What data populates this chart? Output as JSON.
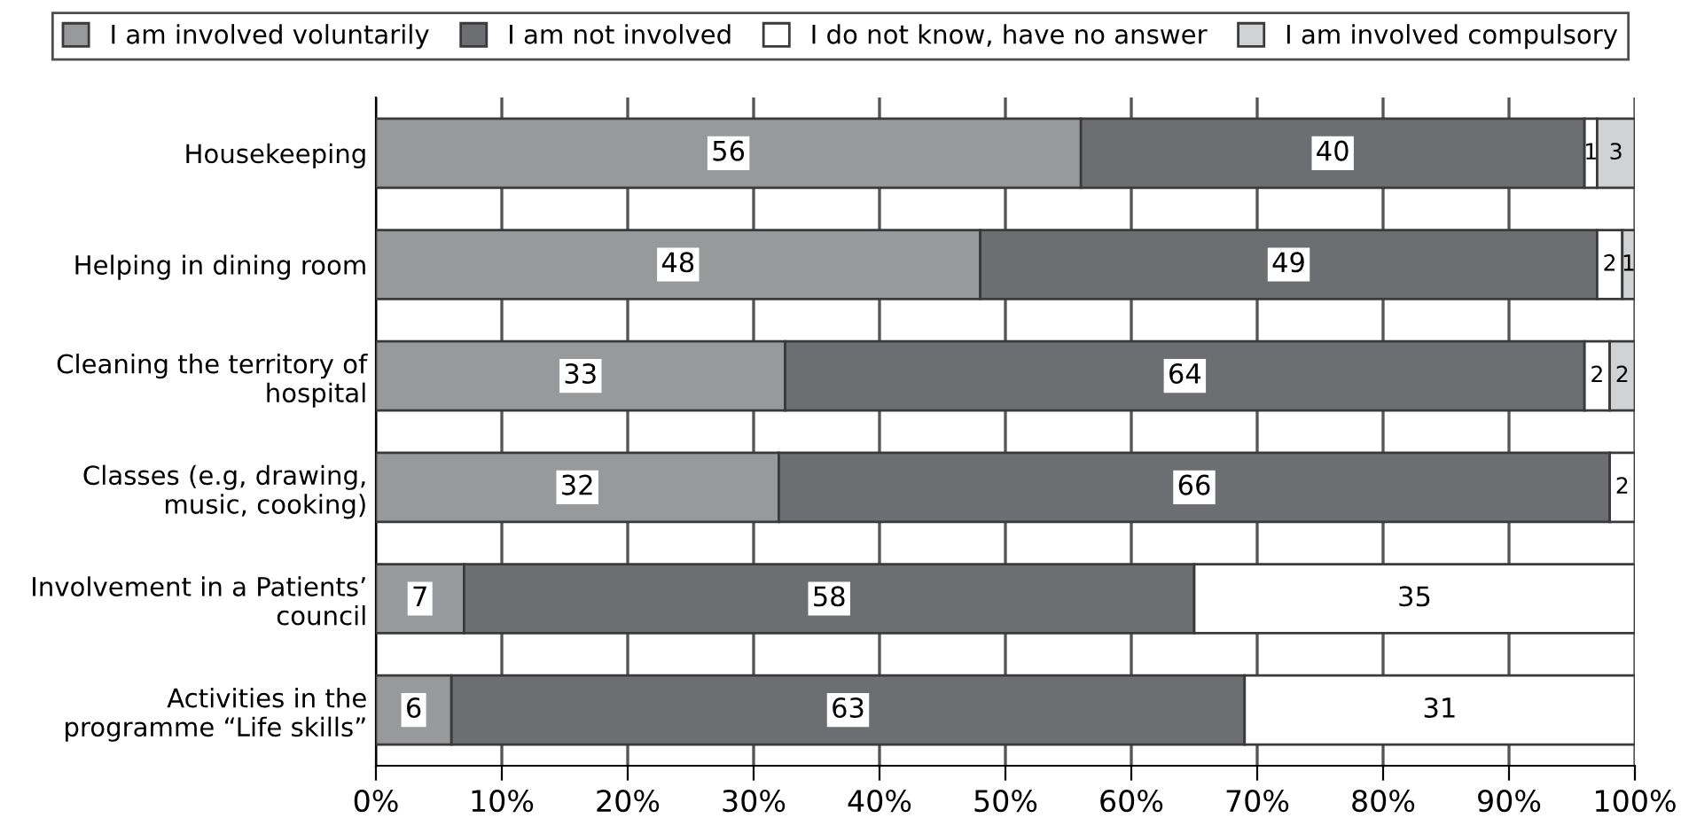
{
  "chart_data": {
    "type": "bar",
    "orientation": "horizontal",
    "stacked": true,
    "categories": [
      "Housekeeping",
      "Helping in dining room",
      "Cleaning the territory of\nhospital",
      "Classes (e.g, drawing,\nmusic, cooking)",
      "Involvement in a Patients’\ncouncil",
      "Activities in the\nprogramme “Life skills”"
    ],
    "series": [
      {
        "name": "I am involved voluntarily",
        "color": "#98999b",
        "values": [
          56,
          48,
          32.5,
          32,
          7,
          6
        ],
        "value_labels": [
          "56",
          "48",
          "33",
          "32",
          "7",
          "6"
        ]
      },
      {
        "name": "I am not involved",
        "color": "#6d6e71",
        "values": [
          40,
          49,
          63.5,
          66,
          58,
          63
        ],
        "value_labels": [
          "40",
          "49",
          "64",
          "66",
          "58",
          "63"
        ]
      },
      {
        "name": "I do not know, have no answer",
        "color": "#ffffff",
        "values": [
          1,
          2,
          2,
          2,
          35,
          31
        ],
        "value_labels": [
          "1",
          "2",
          "2",
          "2",
          "35",
          "31"
        ]
      },
      {
        "name": "I am involved compulsory",
        "color": "#d1d2d4",
        "values": [
          3,
          1,
          2,
          null,
          null,
          null
        ],
        "value_labels": [
          "3",
          "1",
          "2",
          null,
          null,
          null
        ]
      }
    ],
    "xlim": [
      0,
      100
    ],
    "xticks": [
      {
        "value": 0,
        "label": "0%"
      },
      {
        "value": 10,
        "label": "10%"
      },
      {
        "value": 20,
        "label": "20%"
      },
      {
        "value": 30,
        "label": "30%"
      },
      {
        "value": 40,
        "label": "40%"
      },
      {
        "value": 50,
        "label": "50%"
      },
      {
        "value": 60,
        "label": "60%"
      },
      {
        "value": 70,
        "label": "70%"
      },
      {
        "value": 80,
        "label": "80%"
      },
      {
        "value": 90,
        "label": "90%"
      },
      {
        "value": 100,
        "label": "100%"
      }
    ],
    "grid": "x",
    "legend": "top"
  }
}
